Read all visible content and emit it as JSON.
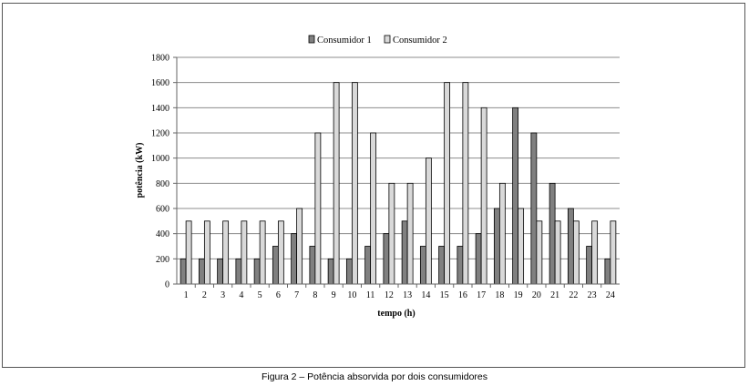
{
  "caption": "Figura 2 – Potência absorvida por dois consumidores",
  "chart_data": {
    "type": "bar",
    "categories": [
      "1",
      "2",
      "3",
      "4",
      "5",
      "6",
      "7",
      "8",
      "9",
      "10",
      "11",
      "12",
      "13",
      "14",
      "15",
      "16",
      "17",
      "18",
      "19",
      "20",
      "21",
      "22",
      "23",
      "24"
    ],
    "series": [
      {
        "name": "Consumidor 1",
        "color": "#808080",
        "values": [
          200,
          200,
          200,
          200,
          200,
          300,
          400,
          300,
          200,
          200,
          300,
          400,
          500,
          300,
          300,
          300,
          400,
          600,
          1400,
          1200,
          800,
          600,
          300,
          200
        ]
      },
      {
        "name": "Consumidor 2",
        "color": "#d9d9d9",
        "values": [
          500,
          500,
          500,
          500,
          500,
          500,
          600,
          1200,
          1600,
          1600,
          1200,
          800,
          800,
          1000,
          1600,
          1600,
          1400,
          800,
          600,
          500,
          500,
          500,
          500,
          500
        ]
      }
    ],
    "xlabel": "tempo (h)",
    "ylabel": "potência (kW)",
    "ylim": [
      0,
      1800
    ],
    "yticks": [
      0,
      200,
      400,
      600,
      800,
      1000,
      1200,
      1400,
      1600,
      1800
    ],
    "grid": true,
    "legend": "top-center"
  }
}
